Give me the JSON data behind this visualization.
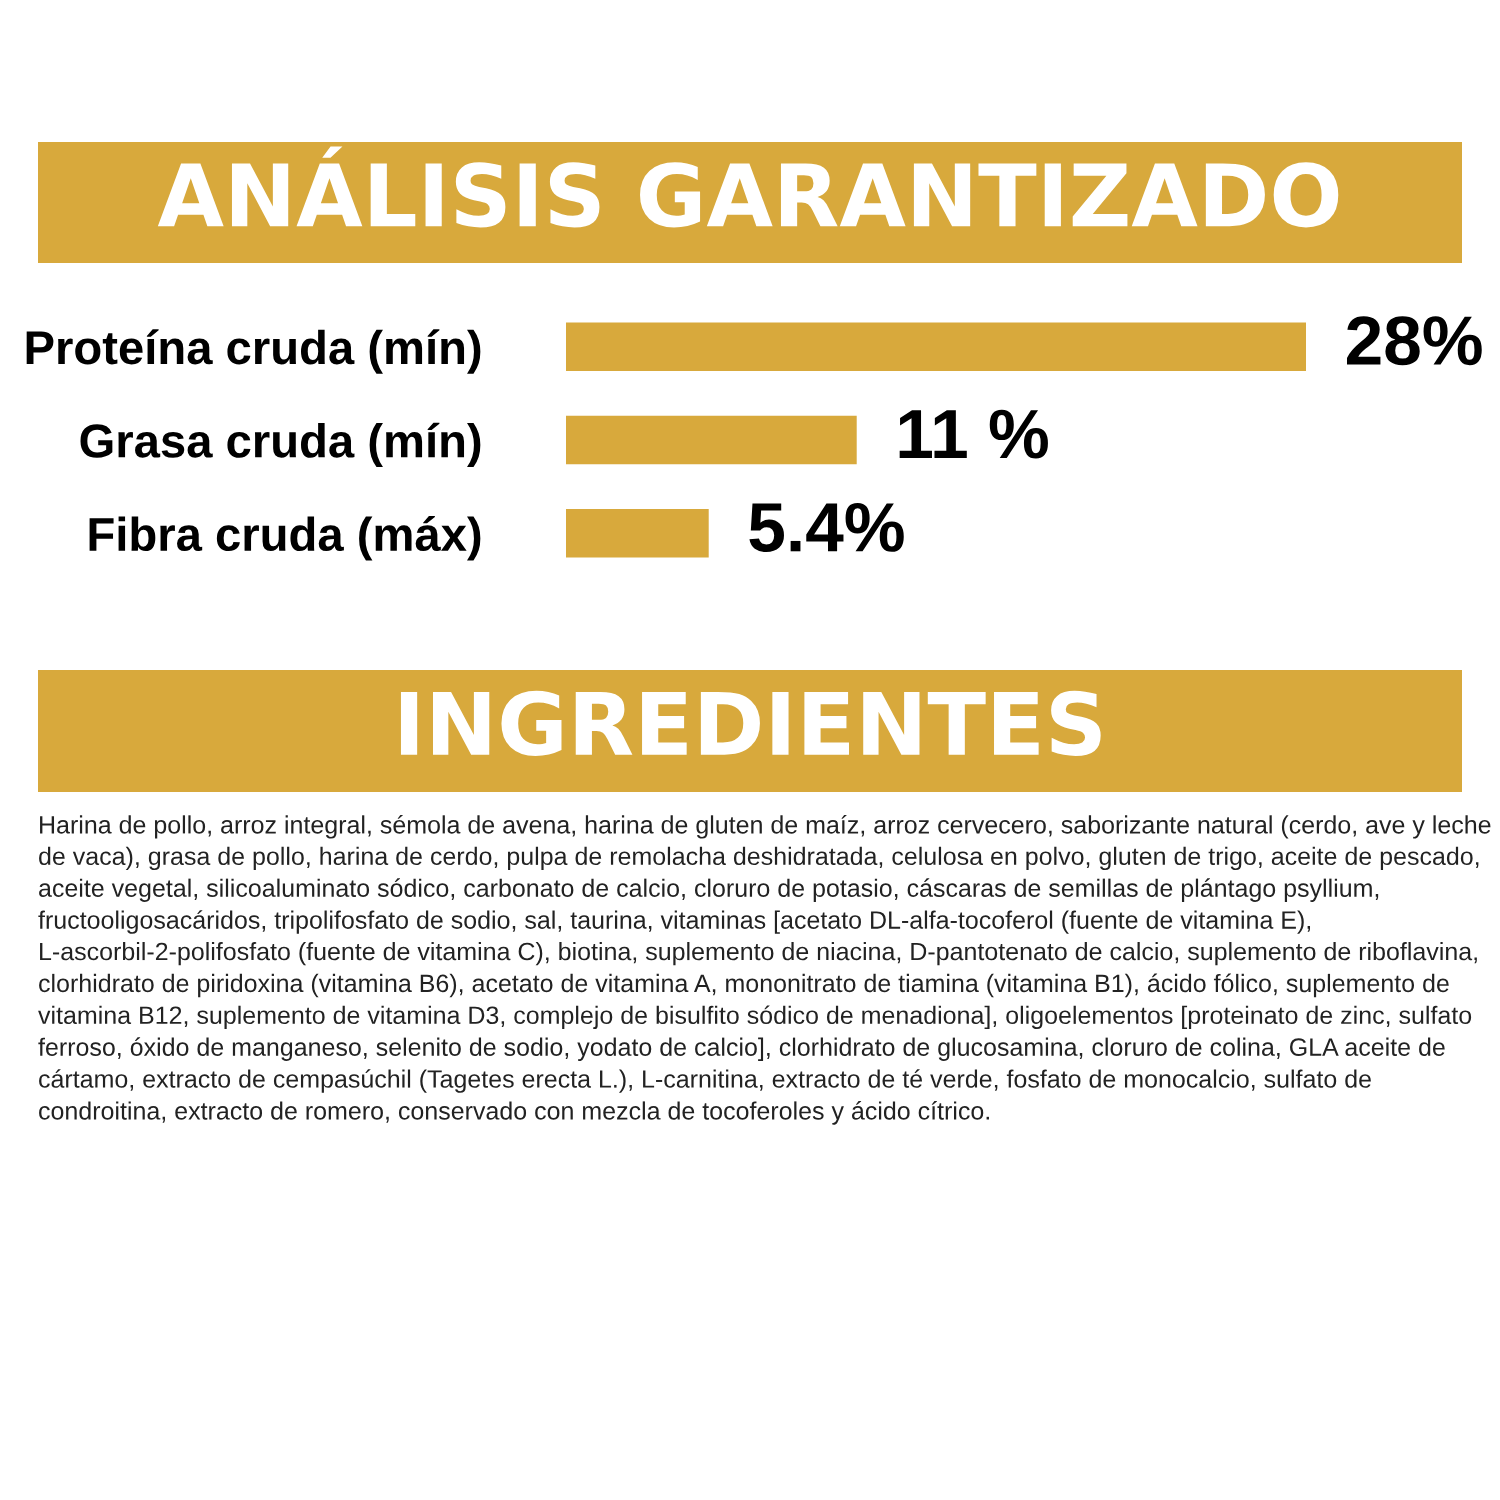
{
  "chart_data": {
    "type": "bar",
    "orientation": "horizontal",
    "title": "ANÁLISIS GARANTIZADO",
    "categories": [
      "Proteína cruda (mín)",
      "Grasa cruda (mín)",
      "Fibra cruda (máx)"
    ],
    "values": [
      28,
      11,
      5.4
    ],
    "value_labels": [
      "28%",
      "11 %",
      "5.4%"
    ],
    "color": "#d8a93c",
    "annotations": [
      "INGREDIENTES",
      "Harina de pollo, arroz integral, sémola de avena, harina de gluten de maíz, arroz cervecero, saborizante natural (cerdo, ave y leche de vaca), grasa de pollo, harina de cerdo, pulpa de remolacha deshidratada, celulosa en polvo, gluten de trigo, aceite de pescado, aceite vegetal, silicoaluminato sódico, carbonato de calcio, cloruro de potasio, cáscaras de semillas de plántago psyllium, fructooligosacáridos, tripolifosfato de sodio, sal, taurina, vitaminas [acetato DL-alfa-tocoferol (fuente de vitamina E), L-ascorbil-2-polifosfato (fuente de vitamina C), biotina, suplemento de niacina, D-pantotenato de calcio, suplemento de riboflavina, clorhidrato de piridoxina (vitamina B6), acetato de vitamina A, mononitrato de tiamina (vitamina B1), ácido fólico, suplemento de vitamina B12, suplemento de vitamina D3, complejo de bisulfito sódico de menadiona], oligoelementos [proteinato de zinc, sulfato ferroso, óxido de manganeso, selenito de sodio, yodato de calcio], clorhidrato de glucosamina, cloruro de colina, GLA aceite de cártamo, extracto de cempasúchil (Tagetes erecta L.), L-carnitina, extracto de té verde, fosfato de monocalcio, sulfato de condroitina, extracto de romero, conservado con mezcla de tocoferoles y ácido cítrico."
    ]
  }
}
